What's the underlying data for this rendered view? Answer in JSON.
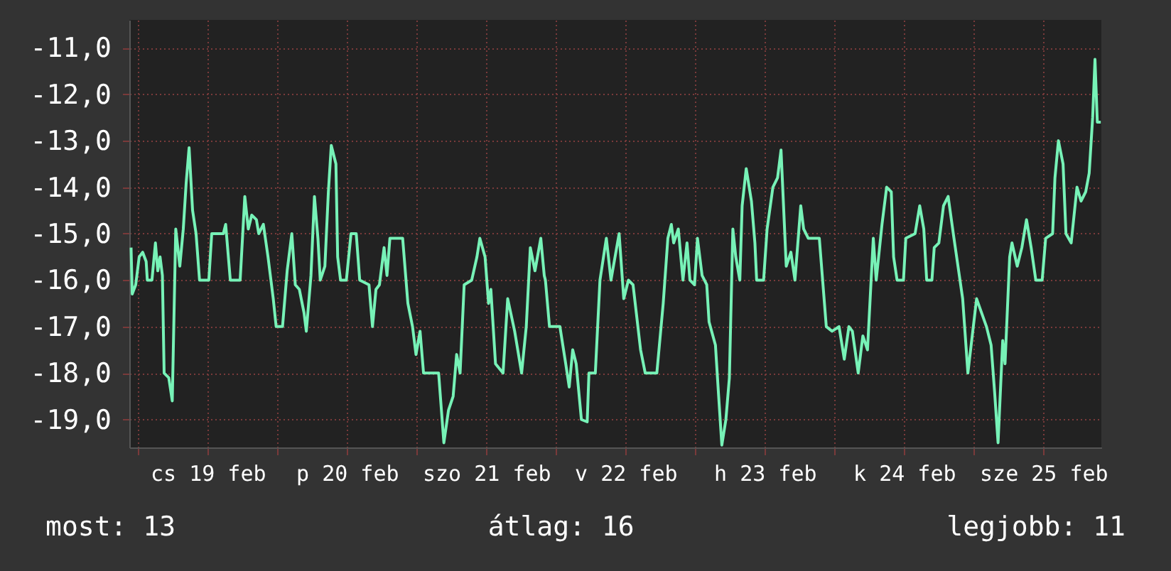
{
  "chart_data": {
    "type": "line",
    "x": [
      "--02-18T22:48",
      "--02-18T23:00",
      "--02-18T23:36",
      "--02-19T00:12",
      "--02-19T00:48",
      "--02-19T01:24",
      "--02-19T01:36",
      "--02-19T02:24",
      "--02-19T03:00",
      "--02-19T03:24",
      "--02-19T03:48",
      "--02-19T04:12",
      "--02-19T04:30",
      "--02-19T05:18",
      "--02-19T05:54",
      "--02-19T06:30",
      "--02-19T07:12",
      "--02-19T07:48",
      "--02-19T08:18",
      "--02-19T08:48",
      "--02-19T09:24",
      "--02-19T10:00",
      "--02-19T10:36",
      "--02-19T12:12",
      "--02-19T12:42",
      "--02-19T14:42",
      "--02-19T15:06",
      "--02-19T15:54",
      "--02-19T17:36",
      "--02-19T18:24",
      "--02-19T19:00",
      "--02-19T19:36",
      "--02-19T20:24",
      "--02-19T20:48",
      "--02-19T21:36",
      "--02-19T22:24",
      "--02-19T23:18",
      "--02-19T23:48",
      "--02-20T00:54",
      "--02-20T01:42",
      "--02-20T02:30",
      "--02-20T03:06",
      "--02-20T03:48",
      "--02-20T04:36",
      "--02-20T05:00",
      "--02-20T05:48",
      "--02-20T06:24",
      "--02-20T07:00",
      "--02-20T07:24",
      "--02-20T08:12",
      "--02-20T08:48",
      "--02-20T09:18",
      "--02-20T10:06",
      "--02-20T10:24",
      "--02-20T10:54",
      "--02-20T11:54",
      "--02-20T12:42",
      "--02-20T13:36",
      "--02-20T14:12",
      "--02-20T15:48",
      "--02-20T16:24",
      "--02-20T17:00",
      "--02-20T17:36",
      "--02-20T18:24",
      "--02-20T18:54",
      "--02-20T19:24",
      "--02-20T21:36",
      "--02-20T22:30",
      "--02-20T23:18",
      "--02-20T23:54",
      "--02-21T00:36",
      "--02-21T01:12",
      "--02-21T03:48",
      "--02-21T04:42",
      "--02-21T05:30",
      "--02-21T06:18",
      "--02-21T06:54",
      "--02-21T07:30",
      "--02-21T08:12",
      "--02-21T09:30",
      "--02-21T10:24",
      "--02-21T10:54",
      "--02-21T11:48",
      "--02-21T12:24",
      "--02-21T12:48",
      "--02-21T13:36",
      "--02-21T14:54",
      "--02-21T15:42",
      "--02-21T16:54",
      "--02-21T18:06",
      "--02-21T18:54",
      "--02-21T19:36",
      "--02-21T20:24",
      "--02-21T21:24",
      "--02-21T22:00",
      "--02-21T22:12",
      "--02-21T22:54",
      "--02-22T00:42",
      "--02-22T01:42",
      "--02-22T02:18",
      "--02-22T02:54",
      "--02-22T03:30",
      "--02-22T04:24",
      "--02-22T05:24",
      "--02-22T05:42",
      "--02-22T06:48",
      "--02-22T07:36",
      "--02-22T08:42",
      "--02-22T09:30",
      "--02-22T10:54",
      "--02-22T11:42",
      "--02-22T12:30",
      "--02-22T13:18",
      "--02-22T14:36",
      "--02-22T15:24",
      "--02-22T17:24",
      "--02-22T18:30",
      "--02-22T19:18",
      "--02-22T19:54",
      "--02-22T20:18",
      "--02-22T21:06",
      "--02-22T21:54",
      "--02-22T22:36",
      "--02-22T23:06",
      "--02-22T23:54",
      "--02-23T00:24",
      "--02-23T01:12",
      "--02-23T02:00",
      "--02-23T02:24",
      "--02-23T03:30",
      "--02-23T04:00",
      "--02-23T04:36",
      "--02-23T05:18",
      "--02-23T05:54",
      "--02-23T06:30",
      "--02-23T07:00",
      "--02-23T07:42",
      "--02-23T08:06",
      "--02-23T08:48",
      "--02-23T09:42",
      "--02-23T10:18",
      "--02-23T10:36",
      "--02-23T11:48",
      "--02-23T12:24",
      "--02-23T13:24",
      "--02-23T14:12",
      "--02-23T14:48",
      "--02-23T15:42",
      "--02-23T16:30",
      "--02-23T17:12",
      "--02-23T18:12",
      "--02-23T18:42",
      "--02-23T19:30",
      "--02-23T21:24",
      "--02-23T22:36",
      "--02-23T23:36",
      "--02-24T00:48",
      "--02-24T01:42",
      "--02-24T02:30",
      "--02-24T03:06",
      "--02-24T04:06",
      "--02-24T04:54",
      "--02-24T05:42",
      "--02-24T06:42",
      "--02-24T07:12",
      "--02-24T08:12",
      "--02-24T09:00",
      "--02-24T09:48",
      "--02-24T10:12",
      "--02-24T10:48",
      "--02-24T11:54",
      "--02-24T12:18",
      "--02-24T13:54",
      "--02-24T14:42",
      "--02-24T15:24",
      "--02-24T15:54",
      "--02-24T16:48",
      "--02-24T17:12",
      "--02-24T18:00",
      "--02-24T18:48",
      "--02-24T19:36",
      "--02-24T20:36",
      "--02-24T22:06",
      "--02-24T23:00",
      "--02-25T00:30",
      "--02-25T02:12",
      "--02-25T03:00",
      "--02-25T03:36",
      "--02-25T04:12",
      "--02-25T05:00",
      "--02-25T05:24",
      "--02-25T06:12",
      "--02-25T06:36",
      "--02-25T07:30",
      "--02-25T08:18",
      "--02-25T09:06",
      "--02-25T09:54",
      "--02-25T10:42",
      "--02-25T11:48",
      "--02-25T12:24",
      "--02-25T13:36",
      "--02-25T14:00",
      "--02-25T14:36",
      "--02-25T15:24",
      "--02-25T15:54",
      "--02-25T16:48",
      "--02-25T17:48",
      "--02-25T18:30",
      "--02-25T19:18",
      "--02-25T19:54",
      "--02-25T20:30",
      "--02-25T20:54",
      "--02-25T21:18",
      "--02-25T21:54"
    ],
    "series": [
      {
        "color": "#77f2b7",
        "values": [
          -15.3,
          -16.3,
          -16.1,
          -15.5,
          -15.4,
          -15.6,
          -16.0,
          -16.0,
          -15.2,
          -15.8,
          -15.5,
          -15.9,
          -18.0,
          -18.1,
          -18.6,
          -14.9,
          -15.7,
          -14.9,
          -13.9,
          -13.15,
          -14.5,
          -15.0,
          -16.0,
          -16.0,
          -15.0,
          -15.0,
          -14.8,
          -16.0,
          -16.0,
          -14.2,
          -14.9,
          -14.6,
          -14.7,
          -15.0,
          -14.8,
          -15.5,
          -16.4,
          -17.0,
          -17.0,
          -15.8,
          -15.0,
          -16.1,
          -16.2,
          -16.7,
          -17.1,
          -15.9,
          -14.2,
          -15.1,
          -16.0,
          -15.7,
          -14.1,
          -13.1,
          -13.5,
          -15.5,
          -16.0,
          -16.0,
          -15.0,
          -15.0,
          -16.0,
          -16.1,
          -17.0,
          -16.2,
          -16.1,
          -15.3,
          -15.9,
          -15.1,
          -15.1,
          -16.5,
          -17.0,
          -17.6,
          -17.1,
          -18.0,
          -18.0,
          -19.5,
          -18.8,
          -18.5,
          -17.6,
          -18.0,
          -16.1,
          -16.0,
          -15.5,
          -15.1,
          -15.5,
          -16.5,
          -16.2,
          -17.8,
          -18.0,
          -16.4,
          -17.1,
          -18.0,
          -17.0,
          -15.3,
          -15.8,
          -15.1,
          -15.9,
          -16.0,
          -17.0,
          -17.0,
          -17.8,
          -18.3,
          -17.5,
          -17.8,
          -19.0,
          -19.05,
          -18.0,
          -18.0,
          -16.0,
          -15.1,
          -16.0,
          -15.0,
          -16.4,
          -16.0,
          -16.1,
          -17.5,
          -18.0,
          -18.0,
          -16.5,
          -15.1,
          -14.8,
          -15.2,
          -14.9,
          -16.0,
          -15.2,
          -16.0,
          -16.1,
          -15.1,
          -15.9,
          -16.1,
          -16.9,
          -17.4,
          -18.4,
          -19.55,
          -19.0,
          -18.1,
          -14.9,
          -15.5,
          -16.0,
          -14.4,
          -13.6,
          -14.3,
          -15.2,
          -16.0,
          -16.0,
          -14.9,
          -14.0,
          -13.8,
          -13.2,
          -15.7,
          -15.4,
          -16.0,
          -14.4,
          -14.9,
          -15.1,
          -15.1,
          -17.0,
          -17.1,
          -17.0,
          -17.7,
          -17.0,
          -17.1,
          -18.0,
          -17.2,
          -17.5,
          -15.1,
          -16.0,
          -14.8,
          -14.0,
          -14.1,
          -15.5,
          -16.0,
          -16.0,
          -15.1,
          -15.0,
          -14.4,
          -14.9,
          -16.0,
          -16.0,
          -15.3,
          -15.2,
          -14.4,
          -14.2,
          -15.1,
          -16.4,
          -18.0,
          -16.4,
          -17.0,
          -17.4,
          -18.4,
          -19.5,
          -17.3,
          -17.8,
          -15.5,
          -15.2,
          -15.7,
          -15.3,
          -14.7,
          -15.3,
          -16.0,
          -16.0,
          -15.1,
          -15.0,
          -13.8,
          -13.0,
          -13.5,
          -15.0,
          -15.2,
          -14.0,
          -14.3,
          -14.1,
          -13.7,
          -12.5,
          -11.25,
          -12.6,
          -12.6
        ]
      }
    ],
    "xlim": [
      "--02-18T22:30",
      "--02-25T22:00"
    ],
    "xticks": [
      {
        "value": "--02-19T00:00",
        "label": null
      },
      {
        "value": "--02-19T12:00",
        "label": "cs 19 feb"
      },
      {
        "value": "--02-20T00:00",
        "label": null
      },
      {
        "value": "--02-20T12:00",
        "label": "p 20 feb"
      },
      {
        "value": "--02-21T00:00",
        "label": null
      },
      {
        "value": "--02-21T12:00",
        "label": "szo 21 feb"
      },
      {
        "value": "--02-22T00:00",
        "label": null
      },
      {
        "value": "--02-22T12:00",
        "label": "v 22 feb"
      },
      {
        "value": "--02-23T00:00",
        "label": null
      },
      {
        "value": "--02-23T12:00",
        "label": "h 23 feb"
      },
      {
        "value": "--02-24T00:00",
        "label": null
      },
      {
        "value": "--02-24T12:00",
        "label": "k 24 feb"
      },
      {
        "value": "--02-25T00:00",
        "label": null
      },
      {
        "value": "--02-25T12:00",
        "label": "sze 25 feb"
      }
    ],
    "ylim": [
      -19.6,
      -10.4
    ],
    "yticks": [
      {
        "value": -19,
        "label": "-19,0"
      },
      {
        "value": -18,
        "label": "-18,0"
      },
      {
        "value": -17,
        "label": "-17,0"
      },
      {
        "value": -16,
        "label": "-16,0"
      },
      {
        "value": -15,
        "label": "-15,0"
      },
      {
        "value": -14,
        "label": "-14,0"
      },
      {
        "value": -13,
        "label": "-13,0"
      },
      {
        "value": -12,
        "label": "-12,0"
      },
      {
        "value": -11,
        "label": "-11,0"
      }
    ],
    "grid": true,
    "annotations": [
      "most: 13",
      "átlag: 16",
      "legjobb: 11"
    ]
  }
}
